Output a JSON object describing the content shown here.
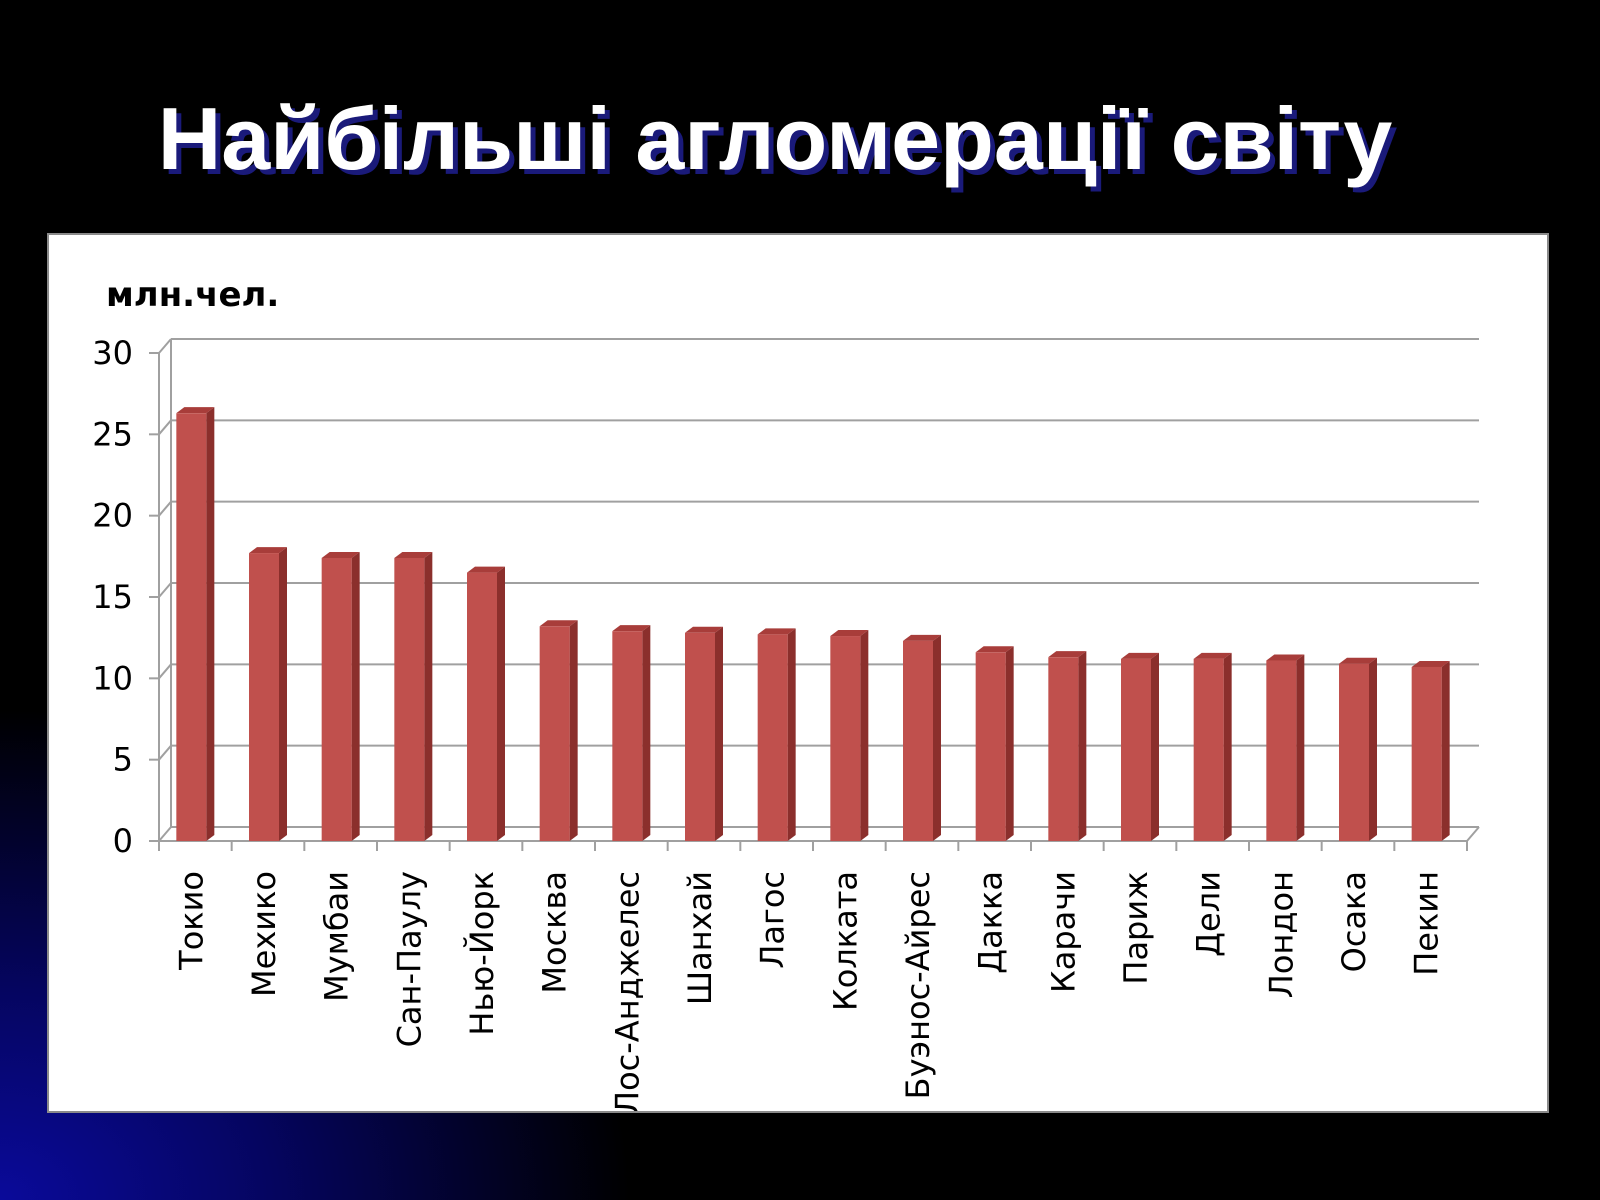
{
  "slide": {
    "title": "Найбільші агломерації світу"
  },
  "colors": {
    "bar_front": "#c0504d",
    "bar_side": "#8b2f2c",
    "bar_top": "#a83d3a",
    "gridline": "#a0a0a0"
  },
  "chart_data": {
    "type": "bar",
    "ylabel": "млн.чел.",
    "ylim": [
      0,
      30
    ],
    "yticks": [
      0,
      5,
      10,
      15,
      20,
      25,
      30
    ],
    "grid": true,
    "categories": [
      "Токио",
      "Мехико",
      "Мумбаи",
      "Сан-Паулу",
      "Нью-Йорк",
      "Москва",
      "Лос-Анджелес",
      "Шанхай",
      "Лагос",
      "Колката",
      "Буэнос-Айрес",
      "Дакка",
      "Карачи",
      "Париж",
      "Дели",
      "Лондон",
      "Осака",
      "Пекин"
    ],
    "values": [
      26.3,
      17.7,
      17.4,
      17.4,
      16.5,
      13.2,
      12.9,
      12.8,
      12.7,
      12.6,
      12.3,
      11.6,
      11.3,
      11.2,
      11.2,
      11.1,
      10.9,
      10.7
    ]
  }
}
